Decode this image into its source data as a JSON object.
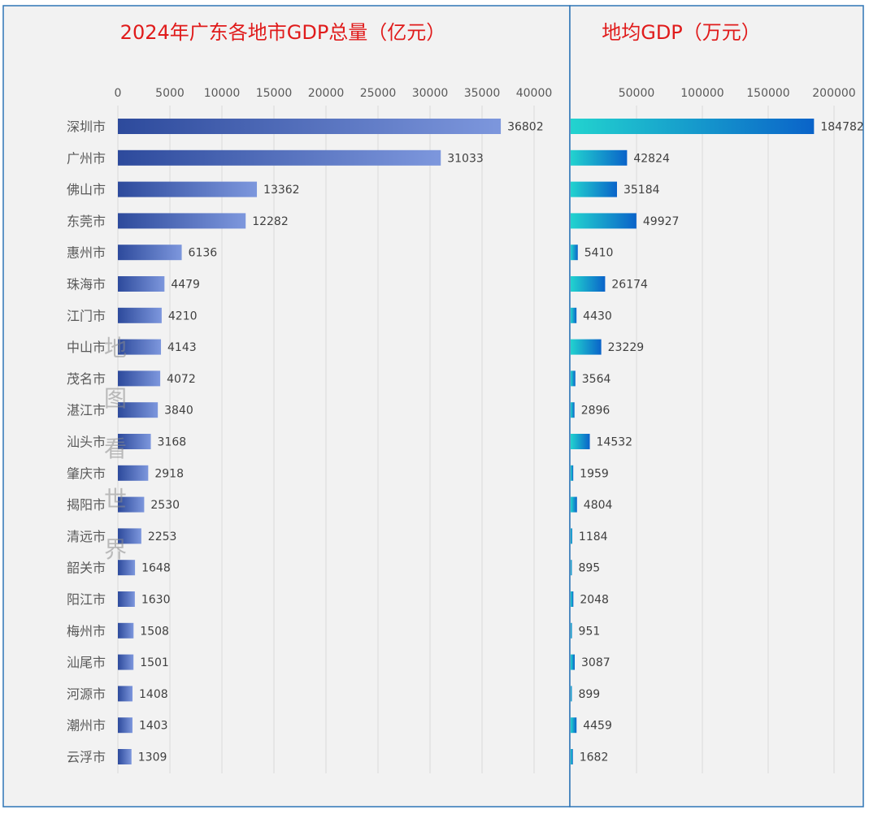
{
  "chart_data": [
    {
      "type": "bar",
      "orientation": "horizontal",
      "title": "2024年广东各地市GDP总量（亿元）",
      "categories": [
        "深圳市",
        "广州市",
        "佛山市",
        "东莞市",
        "惠州市",
        "珠海市",
        "江门市",
        "中山市",
        "茂名市",
        "湛江市",
        "汕头市",
        "肇庆市",
        "揭阳市",
        "清远市",
        "韶关市",
        "阳江市",
        "梅州市",
        "汕尾市",
        "河源市",
        "潮州市",
        "云浮市"
      ],
      "values": [
        36802,
        31033,
        13362,
        12282,
        6136,
        4479,
        4210,
        4143,
        4072,
        3840,
        3168,
        2918,
        2530,
        2253,
        1648,
        1630,
        1508,
        1501,
        1408,
        1403,
        1309
      ],
      "xlim": [
        0,
        40000
      ],
      "xticks": [
        0,
        5000,
        10000,
        15000,
        20000,
        25000,
        30000,
        35000,
        40000
      ],
      "axis_position": "top",
      "grid": true,
      "bar_color": "#3a5fb8"
    },
    {
      "type": "bar",
      "orientation": "horizontal",
      "title": "地均GDP（万元）",
      "categories": [
        "深圳市",
        "广州市",
        "佛山市",
        "东莞市",
        "惠州市",
        "珠海市",
        "江门市",
        "中山市",
        "茂名市",
        "湛江市",
        "汕头市",
        "肇庆市",
        "揭阳市",
        "清远市",
        "韶关市",
        "阳江市",
        "梅州市",
        "汕尾市",
        "河源市",
        "潮州市",
        "云浮市"
      ],
      "values": [
        184782,
        42824,
        35184,
        49927,
        5410,
        26174,
        4430,
        23229,
        3564,
        2896,
        14532,
        1959,
        4804,
        1184,
        895,
        2048,
        951,
        3087,
        899,
        4459,
        1682
      ],
      "xlim": [
        0,
        200000
      ],
      "xticks": [
        50000,
        100000,
        150000,
        200000
      ],
      "axis_position": "top",
      "grid": true,
      "bar_color": "#1fb9d6"
    }
  ],
  "watermark": "地图看世界"
}
